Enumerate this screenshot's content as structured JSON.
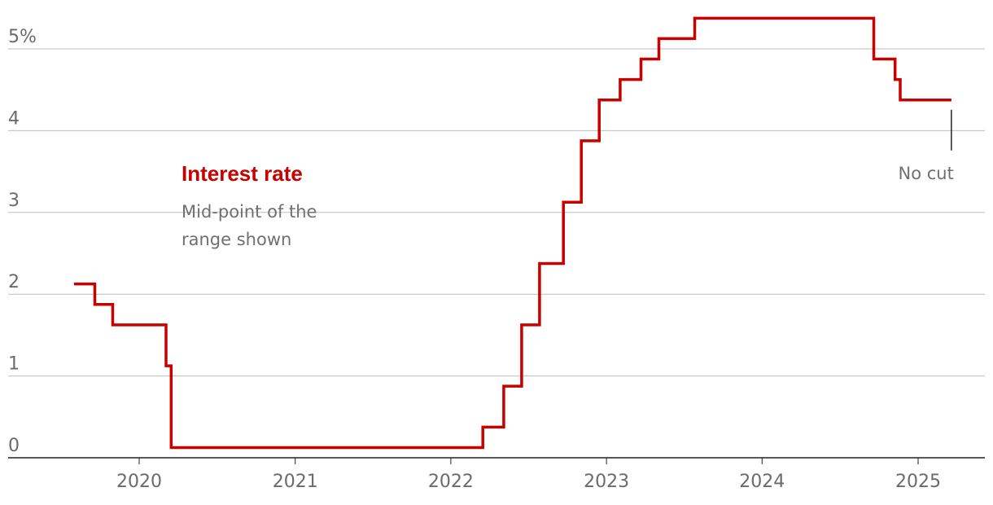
{
  "chart_data": {
    "type": "line",
    "step": "after",
    "title": "Interest rate",
    "subtitle_lines": [
      "Mid-point of the",
      "range shown"
    ],
    "ylabel": "",
    "xlabel": "",
    "ylim": [
      0,
      5.4
    ],
    "xlim": [
      "2019-04-15",
      "2025-07-01"
    ],
    "y_ticks": [
      0,
      1,
      2,
      3,
      4,
      5
    ],
    "y_tick_labels": [
      "0",
      "1",
      "2",
      "3",
      "4",
      "5%"
    ],
    "x_ticks": [
      "2020-01-01",
      "2021-01-01",
      "2022-01-01",
      "2023-01-01",
      "2024-01-01",
      "2025-01-01"
    ],
    "x_tick_labels": [
      "2020",
      "2021",
      "2022",
      "2023",
      "2024",
      "2025"
    ],
    "grid": true,
    "series": [
      {
        "name": "Interest rate",
        "color": "#c70000",
        "points": [
          {
            "x": "2019-08-01",
            "y": 2.125
          },
          {
            "x": "2019-09-19",
            "y": 1.875
          },
          {
            "x": "2019-10-31",
            "y": 1.625
          },
          {
            "x": "2020-03-04",
            "y": 1.125
          },
          {
            "x": "2020-03-16",
            "y": 0.125
          },
          {
            "x": "2022-03-17",
            "y": 0.375
          },
          {
            "x": "2022-05-05",
            "y": 0.875
          },
          {
            "x": "2022-06-16",
            "y": 1.625
          },
          {
            "x": "2022-07-28",
            "y": 2.375
          },
          {
            "x": "2022-09-22",
            "y": 3.125
          },
          {
            "x": "2022-11-03",
            "y": 3.875
          },
          {
            "x": "2022-12-15",
            "y": 4.375
          },
          {
            "x": "2023-02-02",
            "y": 4.625
          },
          {
            "x": "2023-03-23",
            "y": 4.875
          },
          {
            "x": "2023-05-04",
            "y": 5.125
          },
          {
            "x": "2023-07-27",
            "y": 5.375
          },
          {
            "x": "2024-09-19",
            "y": 4.875
          },
          {
            "x": "2024-11-08",
            "y": 4.625
          },
          {
            "x": "2024-11-20",
            "y": 4.375
          },
          {
            "x": "2025-03-20",
            "y": 4.375
          }
        ]
      }
    ],
    "annotations": [
      {
        "text": "No cut",
        "x": "2025-03-20",
        "y": 4.375
      }
    ]
  },
  "colors": {
    "series": "#c70000",
    "grid": "#bdbdbd",
    "axis": "#222222",
    "tick_text": "#6b6b6b",
    "annotation_line": "#222222"
  }
}
